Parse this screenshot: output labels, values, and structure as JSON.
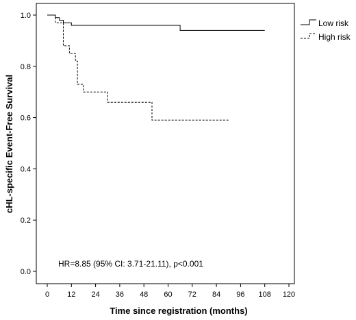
{
  "chart_data": {
    "type": "line",
    "subtype": "kaplan-meier step",
    "title": "",
    "xlabel": "Time since registration (months)",
    "ylabel": "cHL-specific Event-Free Survival",
    "xlim": [
      0,
      120
    ],
    "ylim": [
      0,
      1.0
    ],
    "xticks": [
      "0",
      "12",
      "24",
      "36",
      "48",
      "60",
      "72",
      "84",
      "96",
      "108",
      "120"
    ],
    "yticks": [
      "0.0",
      "0.2",
      "0.4",
      "0.6",
      "0.8",
      "1.0"
    ],
    "grid": false,
    "legend_position": "top-right outside plot",
    "annotation": "HR=8.85 (95% CI: 3.71-21.11), p<0.001",
    "series": [
      {
        "name": "Low risk",
        "line_style": "solid",
        "points": [
          [
            0,
            1.0
          ],
          [
            4,
            1.0
          ],
          [
            4,
            0.99
          ],
          [
            6,
            0.99
          ],
          [
            6,
            0.98
          ],
          [
            8,
            0.98
          ],
          [
            8,
            0.97
          ],
          [
            12,
            0.97
          ],
          [
            12,
            0.96
          ],
          [
            66,
            0.96
          ],
          [
            66,
            0.94
          ],
          [
            108,
            0.94
          ]
        ]
      },
      {
        "name": "High risk",
        "line_style": "dashed",
        "points": [
          [
            0,
            1.0
          ],
          [
            4,
            1.0
          ],
          [
            4,
            0.97
          ],
          [
            8,
            0.97
          ],
          [
            8,
            0.88
          ],
          [
            11,
            0.88
          ],
          [
            11,
            0.85
          ],
          [
            14,
            0.85
          ],
          [
            14,
            0.82
          ],
          [
            15,
            0.82
          ],
          [
            15,
            0.73
          ],
          [
            18,
            0.73
          ],
          [
            18,
            0.7
          ],
          [
            30,
            0.7
          ],
          [
            30,
            0.66
          ],
          [
            52,
            0.66
          ],
          [
            52,
            0.59
          ],
          [
            90,
            0.59
          ]
        ]
      }
    ]
  }
}
